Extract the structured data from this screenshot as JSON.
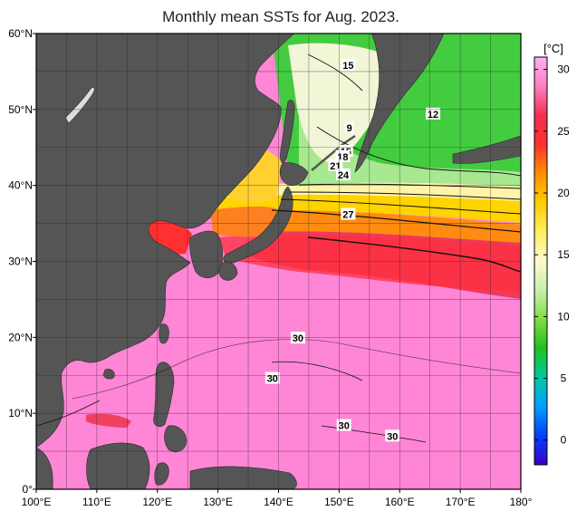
{
  "title": "Monthly mean SSTs for Aug. 2023.",
  "map": {
    "lon_range": [
      100,
      180
    ],
    "lat_range": [
      0,
      60
    ],
    "lon_ticks": [
      "100°E",
      "110°E",
      "120°E",
      "130°E",
      "140°E",
      "150°E",
      "160°E",
      "170°E",
      "180°"
    ],
    "lat_ticks": [
      "0°",
      "10°N",
      "20°N",
      "30°N",
      "40°N",
      "50°N",
      "60°N"
    ],
    "grid_spacing_deg": 5,
    "land_color": "#555555",
    "contour_labels": [
      {
        "text": "15",
        "lon": 151.5,
        "lat": 55.8
      },
      {
        "text": "12",
        "lon": 165.5,
        "lat": 49.4
      },
      {
        "text": "9",
        "lon": 151.7,
        "lat": 47.6
      },
      {
        "text": "15",
        "lon": 151.1,
        "lat": 44.5
      },
      {
        "text": "18",
        "lon": 150.6,
        "lat": 43.8
      },
      {
        "text": "21",
        "lon": 149.4,
        "lat": 42.6
      },
      {
        "text": "24",
        "lon": 150.7,
        "lat": 41.4
      },
      {
        "text": "27",
        "lon": 151.5,
        "lat": 36.2
      },
      {
        "text": "30",
        "lon": 143.2,
        "lat": 19.9
      },
      {
        "text": "30",
        "lon": 139.0,
        "lat": 14.6
      },
      {
        "text": "30",
        "lon": 150.8,
        "lat": 8.4
      },
      {
        "text": "30",
        "lon": 158.8,
        "lat": 7.0
      }
    ]
  },
  "colorbar": {
    "unit": "[°C]",
    "ticks": [
      "30",
      "25",
      "20",
      "15",
      "10",
      "5",
      "0"
    ],
    "range": [
      -2,
      31
    ],
    "colors": [
      "#3a00c8",
      "#0040ff",
      "#00a0ff",
      "#00c8a0",
      "#22c020",
      "#80dd40",
      "#c8f0b0",
      "#fff8d0",
      "#ffee60",
      "#ffcc00",
      "#ff9000",
      "#ff3030",
      "#f03050",
      "#ff7fc0",
      "#ffb0f0"
    ]
  }
}
